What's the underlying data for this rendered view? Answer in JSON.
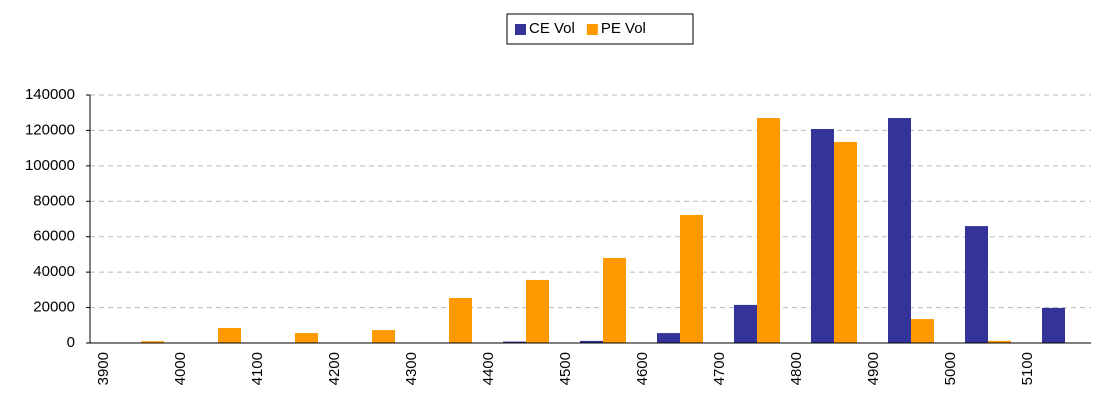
{
  "chart_data": {
    "type": "bar",
    "categories": [
      "3900",
      "4000",
      "4100",
      "4200",
      "4300",
      "4400",
      "4500",
      "4600",
      "4700",
      "4800",
      "4900",
      "5000",
      "5100"
    ],
    "series": [
      {
        "name": "CE Vol",
        "color": "#333399",
        "values": [
          0,
          0,
          0,
          0,
          0,
          800,
          1200,
          5600,
          21500,
          120800,
          127000,
          66000,
          19800
        ]
      },
      {
        "name": "PE Vol",
        "color": "#ff9900",
        "values": [
          1000,
          8500,
          5600,
          7300,
          25400,
          35600,
          48000,
          72300,
          127000,
          113500,
          13500,
          1200,
          0
        ]
      }
    ],
    "ylim": [
      0,
      140000
    ],
    "yticks": [
      0,
      20000,
      40000,
      60000,
      80000,
      100000,
      120000,
      140000
    ],
    "grid": true,
    "legend": "top"
  }
}
